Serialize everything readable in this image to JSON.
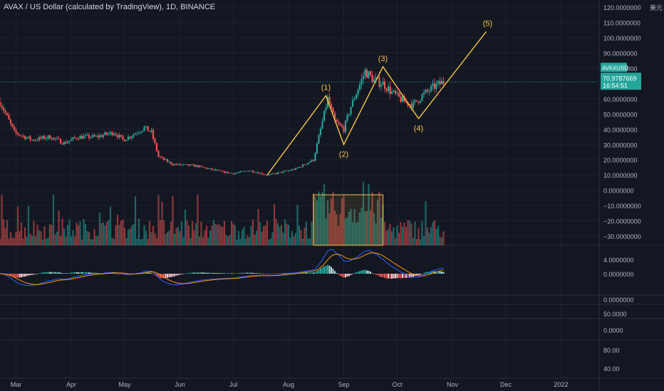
{
  "header": {
    "title": "AVAX / US Dollar (calculated by TradingView), 1D, BINANCE"
  },
  "price_axis": {
    "ticks": [
      {
        "label": "120.0000000",
        "value": 120
      },
      {
        "label": "110.0000000",
        "value": 110
      },
      {
        "label": "100.0000000",
        "value": 100
      },
      {
        "label": "90.0000000",
        "value": 90
      },
      {
        "label": "80.0000000",
        "value": 80
      },
      {
        "label": "60.0000000",
        "value": 60
      },
      {
        "label": "50.0000000",
        "value": 50
      },
      {
        "label": "40.0000000",
        "value": 40
      },
      {
        "label": "30.0000000",
        "value": 30
      },
      {
        "label": "20.0000000",
        "value": 20
      },
      {
        "label": "10.0000000",
        "value": 10
      },
      {
        "label": "0.0000000",
        "value": 0
      },
      {
        "label": "−10.0000000",
        "value": -10
      },
      {
        "label": "−20.0000000",
        "value": -20
      },
      {
        "label": "−30.0000000",
        "value": -30
      }
    ],
    "currency_label": "美元",
    "symbol_badge": "AVAXUSD",
    "last_price": "70.9787669",
    "countdown": "16:54:51"
  },
  "macd_axis": {
    "ticks": [
      {
        "label": "4.0000000",
        "value": 4
      },
      {
        "label": "0.0000000",
        "value": 0
      }
    ]
  },
  "extra_panes": [
    {
      "label": "0.0000000"
    },
    {
      "label": "50.0000"
    },
    {
      "label": "0.0000"
    },
    {
      "label": "80.00"
    },
    {
      "label": "40.00"
    }
  ],
  "time_axis": {
    "labels": [
      "Mar",
      "Apr",
      "May",
      "Jun",
      "Jul",
      "Aug",
      "Sep",
      "Oct",
      "Nov",
      "Dec",
      "2022"
    ]
  },
  "chart_data": {
    "type": "candlestick",
    "x_range": [
      "2021-02-20",
      "2022-01-22"
    ],
    "y_range": [
      -36,
      120
    ],
    "grid": true,
    "colors": {
      "up": "#26a69a",
      "down": "#ef5350",
      "wave": "#f7c544",
      "macd": "#2962ff",
      "signal": "#ff9800",
      "background": "#131722"
    },
    "price_anchors": [
      {
        "date": "2021-02-20",
        "value": 58
      },
      {
        "date": "2021-02-28",
        "value": 38
      },
      {
        "date": "2021-03-10",
        "value": 33
      },
      {
        "date": "2021-03-20",
        "value": 35
      },
      {
        "date": "2021-03-28",
        "value": 31
      },
      {
        "date": "2021-04-05",
        "value": 35
      },
      {
        "date": "2021-04-15",
        "value": 35
      },
      {
        "date": "2021-04-25",
        "value": 38
      },
      {
        "date": "2021-04-30",
        "value": 33
      },
      {
        "date": "2021-05-05",
        "value": 36
      },
      {
        "date": "2021-05-12",
        "value": 41
      },
      {
        "date": "2021-05-16",
        "value": 38
      },
      {
        "date": "2021-05-20",
        "value": 22
      },
      {
        "date": "2021-05-28",
        "value": 17
      },
      {
        "date": "2021-06-10",
        "value": 16
      },
      {
        "date": "2021-06-25",
        "value": 12
      },
      {
        "date": "2021-07-01",
        "value": 11
      },
      {
        "date": "2021-07-10",
        "value": 13
      },
      {
        "date": "2021-07-20",
        "value": 10
      },
      {
        "date": "2021-07-25",
        "value": 11
      },
      {
        "date": "2021-08-05",
        "value": 14
      },
      {
        "date": "2021-08-15",
        "value": 20
      },
      {
        "date": "2021-08-20",
        "value": 45
      },
      {
        "date": "2021-08-23",
        "value": 60
      },
      {
        "date": "2021-08-27",
        "value": 45
      },
      {
        "date": "2021-09-01",
        "value": 40
      },
      {
        "date": "2021-09-05",
        "value": 55
      },
      {
        "date": "2021-09-13",
        "value": 78
      },
      {
        "date": "2021-09-18",
        "value": 72
      },
      {
        "date": "2021-09-23",
        "value": 70
      },
      {
        "date": "2021-09-28",
        "value": 64
      },
      {
        "date": "2021-10-05",
        "value": 58
      },
      {
        "date": "2021-10-10",
        "value": 56
      },
      {
        "date": "2021-10-15",
        "value": 62
      },
      {
        "date": "2021-10-22",
        "value": 68
      },
      {
        "date": "2021-10-27",
        "value": 71
      }
    ],
    "volume_highlight": {
      "start": "2021-08-15",
      "end": "2021-09-23"
    },
    "elliott_wave": [
      {
        "label": "",
        "date": "2021-07-20",
        "value": 10
      },
      {
        "label": "(1)",
        "date": "2021-08-22",
        "value": 62
      },
      {
        "label": "(2)",
        "date": "2021-09-01",
        "value": 30
      },
      {
        "label": "(3)",
        "date": "2021-09-23",
        "value": 81
      },
      {
        "label": "(4)",
        "date": "2021-10-13",
        "value": 47
      },
      {
        "label": "(5)",
        "date": "2021-11-20",
        "value": 104
      }
    ]
  }
}
